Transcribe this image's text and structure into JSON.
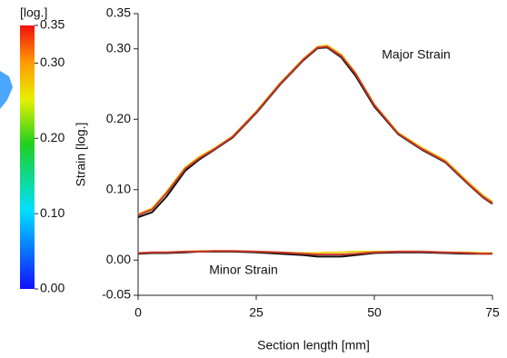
{
  "chart_data": {
    "type": "line",
    "xlabel": "Section length [mm]",
    "ylabel": "Strain [log.]",
    "annotations": [
      {
        "text": "Major Strain",
        "x": 40,
        "y": 0.29
      },
      {
        "text": "Minor Strain",
        "x": 10,
        "y": -0.018
      }
    ],
    "x": [
      0,
      3,
      6,
      10,
      13,
      16,
      20,
      25,
      30,
      35,
      38,
      40,
      43,
      46,
      50,
      55,
      60,
      65,
      70,
      73,
      75
    ],
    "series": [
      {
        "color": "#f2d21a",
        "values": [
          0.065,
          0.074,
          0.097,
          0.132,
          0.147,
          0.158,
          0.176,
          0.211,
          0.251,
          0.286,
          0.303,
          0.305,
          0.292,
          0.266,
          0.221,
          0.181,
          0.16,
          0.142,
          0.11,
          0.092,
          0.083
        ]
      },
      {
        "color": "#111111",
        "values": [
          0.061,
          0.068,
          0.09,
          0.127,
          0.143,
          0.156,
          0.174,
          0.209,
          0.249,
          0.284,
          0.301,
          0.302,
          0.288,
          0.262,
          0.218,
          0.179,
          0.157,
          0.139,
          0.107,
          0.089,
          0.08
        ]
      },
      {
        "color": "#c8372d",
        "values": [
          0.064,
          0.072,
          0.095,
          0.13,
          0.145,
          0.157,
          0.175,
          0.21,
          0.25,
          0.285,
          0.302,
          0.303,
          0.29,
          0.265,
          0.22,
          0.18,
          0.158,
          0.14,
          0.108,
          0.09,
          0.081
        ]
      },
      {
        "color": "#f2d21a",
        "values": [
          0.01,
          0.011,
          0.011,
          0.012,
          0.013,
          0.013,
          0.013,
          0.012,
          0.011,
          0.01,
          0.01,
          0.011,
          0.011,
          0.012,
          0.012,
          0.012,
          0.012,
          0.011,
          0.011,
          0.01,
          0.01
        ]
      },
      {
        "color": "#111111",
        "values": [
          0.009,
          0.01,
          0.01,
          0.011,
          0.012,
          0.012,
          0.012,
          0.011,
          0.009,
          0.007,
          0.005,
          0.005,
          0.005,
          0.007,
          0.01,
          0.011,
          0.011,
          0.01,
          0.009,
          0.009,
          0.009
        ]
      },
      {
        "color": "#c8372d",
        "values": [
          0.01,
          0.011,
          0.011,
          0.012,
          0.012,
          0.013,
          0.013,
          0.012,
          0.011,
          0.009,
          0.008,
          0.008,
          0.008,
          0.009,
          0.011,
          0.012,
          0.012,
          0.011,
          0.01,
          0.009,
          0.009
        ]
      }
    ],
    "xlim": [
      0,
      75
    ],
    "xticks": [
      0,
      25,
      50,
      75
    ],
    "ylim": [
      -0.05,
      0.35
    ],
    "yticks": [
      -0.05,
      {
        "value": 0,
        "label": "0.00"
      },
      {
        "value": 0.1,
        "label": "0.10"
      },
      {
        "value": 0.2,
        "label": "0.20"
      },
      {
        "value": 0.3,
        "label": "0.30"
      },
      0.35
    ],
    "grid": false,
    "colorbar": {
      "label": "[log.]",
      "lim": [
        0,
        0.35
      ],
      "ticks": [
        {
          "value": 0,
          "label": "0.00"
        },
        {
          "value": 0.1,
          "label": "0.10"
        },
        {
          "value": 0.2,
          "label": "0.20"
        },
        {
          "value": 0.3,
          "label": "0.30"
        },
        0.35
      ]
    }
  }
}
